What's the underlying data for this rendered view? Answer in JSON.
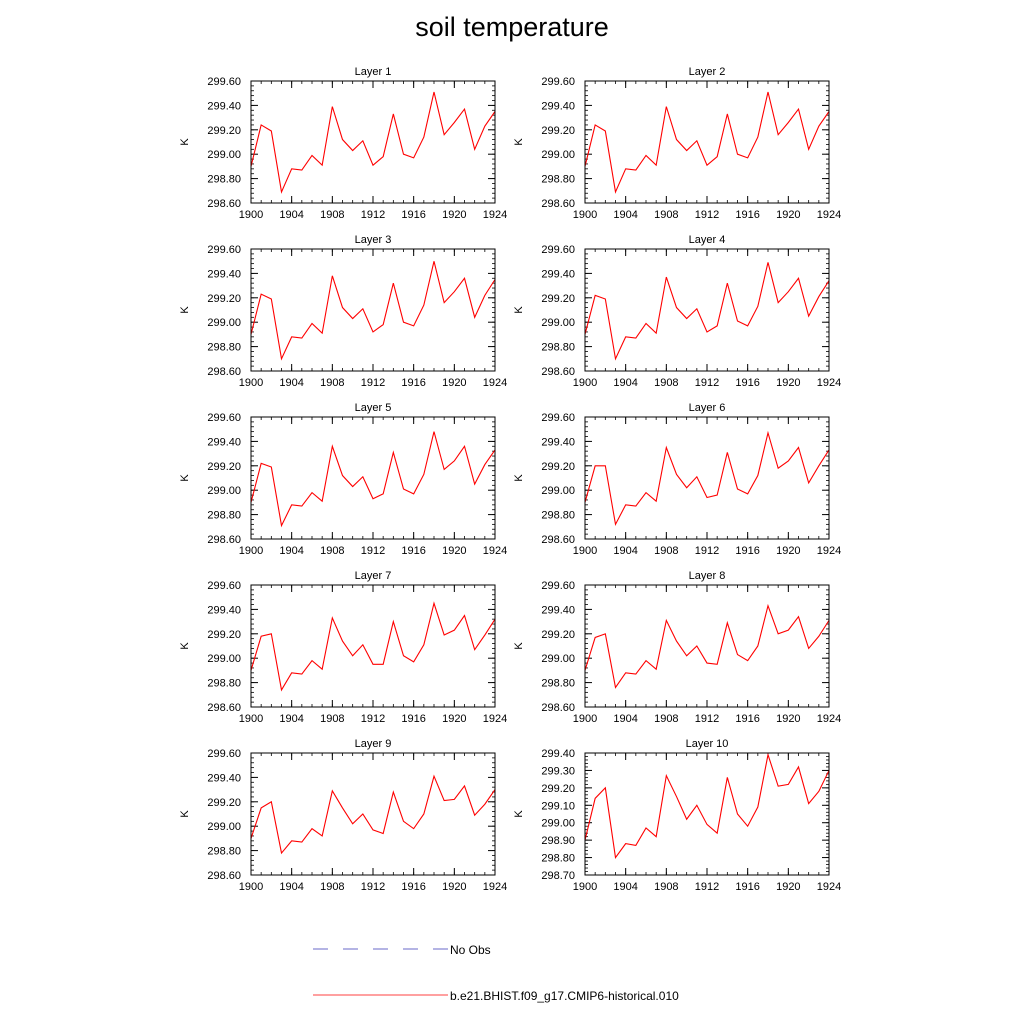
{
  "title": "soil temperature",
  "colors": {
    "model": "#ff0000",
    "obs": "#6a6ac8",
    "axis": "#000000"
  },
  "legend": {
    "obs_label": "No Obs",
    "model_label": "b.e21.BHIST.f09_g17.CMIP6-historical.010"
  },
  "chart_data": [
    {
      "type": "line",
      "title": "Layer 1",
      "ylabel": "K",
      "xlabel": "",
      "x": [
        1900,
        1901,
        1902,
        1903,
        1904,
        1905,
        1906,
        1907,
        1908,
        1909,
        1910,
        1911,
        1912,
        1913,
        1914,
        1915,
        1916,
        1917,
        1918,
        1919,
        1920,
        1921,
        1922,
        1923,
        1924
      ],
      "xticks": [
        1900,
        1904,
        1908,
        1912,
        1916,
        1920,
        1924
      ],
      "xlim": [
        1900,
        1924
      ],
      "yticks": [
        "298.60",
        "298.80",
        "299.00",
        "299.20",
        "299.40",
        "299.60"
      ],
      "ylim": [
        298.6,
        299.6
      ],
      "series": [
        {
          "name": "b.e21.BHIST.f09_g17.CMIP6-historical.010",
          "values": [
            298.9,
            299.24,
            299.19,
            298.69,
            298.88,
            298.87,
            298.99,
            298.91,
            299.39,
            299.12,
            299.03,
            299.11,
            298.91,
            298.98,
            299.33,
            299.0,
            298.97,
            299.14,
            299.51,
            299.16,
            299.26,
            299.37,
            299.04,
            299.23,
            299.35
          ]
        }
      ]
    },
    {
      "type": "line",
      "title": "Layer 2",
      "ylabel": "K",
      "xlabel": "",
      "x": [
        1900,
        1901,
        1902,
        1903,
        1904,
        1905,
        1906,
        1907,
        1908,
        1909,
        1910,
        1911,
        1912,
        1913,
        1914,
        1915,
        1916,
        1917,
        1918,
        1919,
        1920,
        1921,
        1922,
        1923,
        1924
      ],
      "xticks": [
        1900,
        1904,
        1908,
        1912,
        1916,
        1920,
        1924
      ],
      "xlim": [
        1900,
        1924
      ],
      "yticks": [
        "298.60",
        "298.80",
        "299.00",
        "299.20",
        "299.40",
        "299.60"
      ],
      "ylim": [
        298.6,
        299.6
      ],
      "series": [
        {
          "name": "b.e21.BHIST.f09_g17.CMIP6-historical.010",
          "values": [
            298.9,
            299.24,
            299.19,
            298.69,
            298.88,
            298.87,
            298.99,
            298.91,
            299.39,
            299.12,
            299.03,
            299.11,
            298.91,
            298.98,
            299.33,
            299.0,
            298.97,
            299.14,
            299.51,
            299.16,
            299.26,
            299.37,
            299.04,
            299.23,
            299.35
          ]
        }
      ]
    },
    {
      "type": "line",
      "title": "Layer 3",
      "ylabel": "K",
      "xlabel": "",
      "x": [
        1900,
        1901,
        1902,
        1903,
        1904,
        1905,
        1906,
        1907,
        1908,
        1909,
        1910,
        1911,
        1912,
        1913,
        1914,
        1915,
        1916,
        1917,
        1918,
        1919,
        1920,
        1921,
        1922,
        1923,
        1924
      ],
      "xticks": [
        1900,
        1904,
        1908,
        1912,
        1916,
        1920,
        1924
      ],
      "xlim": [
        1900,
        1924
      ],
      "yticks": [
        "298.60",
        "298.80",
        "299.00",
        "299.20",
        "299.40",
        "299.60"
      ],
      "ylim": [
        298.6,
        299.6
      ],
      "series": [
        {
          "name": "b.e21.BHIST.f09_g17.CMIP6-historical.010",
          "values": [
            298.9,
            299.23,
            299.19,
            298.7,
            298.88,
            298.87,
            298.99,
            298.91,
            299.38,
            299.12,
            299.03,
            299.11,
            298.92,
            298.98,
            299.32,
            299.0,
            298.97,
            299.14,
            299.5,
            299.16,
            299.25,
            299.36,
            299.04,
            299.22,
            299.35
          ]
        }
      ]
    },
    {
      "type": "line",
      "title": "Layer 4",
      "ylabel": "K",
      "xlabel": "",
      "x": [
        1900,
        1901,
        1902,
        1903,
        1904,
        1905,
        1906,
        1907,
        1908,
        1909,
        1910,
        1911,
        1912,
        1913,
        1914,
        1915,
        1916,
        1917,
        1918,
        1919,
        1920,
        1921,
        1922,
        1923,
        1924
      ],
      "xticks": [
        1900,
        1904,
        1908,
        1912,
        1916,
        1920,
        1924
      ],
      "xlim": [
        1900,
        1924
      ],
      "yticks": [
        "298.60",
        "298.80",
        "299.00",
        "299.20",
        "299.40",
        "299.60"
      ],
      "ylim": [
        298.6,
        299.6
      ],
      "series": [
        {
          "name": "b.e21.BHIST.f09_g17.CMIP6-historical.010",
          "values": [
            298.9,
            299.22,
            299.19,
            298.7,
            298.88,
            298.87,
            298.99,
            298.91,
            299.37,
            299.12,
            299.03,
            299.11,
            298.92,
            298.97,
            299.32,
            299.01,
            298.97,
            299.13,
            299.49,
            299.16,
            299.25,
            299.36,
            299.05,
            299.21,
            299.34
          ]
        }
      ]
    },
    {
      "type": "line",
      "title": "Layer 5",
      "ylabel": "K",
      "xlabel": "",
      "x": [
        1900,
        1901,
        1902,
        1903,
        1904,
        1905,
        1906,
        1907,
        1908,
        1909,
        1910,
        1911,
        1912,
        1913,
        1914,
        1915,
        1916,
        1917,
        1918,
        1919,
        1920,
        1921,
        1922,
        1923,
        1924
      ],
      "xticks": [
        1900,
        1904,
        1908,
        1912,
        1916,
        1920,
        1924
      ],
      "xlim": [
        1900,
        1924
      ],
      "yticks": [
        "298.60",
        "298.80",
        "299.00",
        "299.20",
        "299.40",
        "299.60"
      ],
      "ylim": [
        298.6,
        299.6
      ],
      "series": [
        {
          "name": "b.e21.BHIST.f09_g17.CMIP6-historical.010",
          "values": [
            298.9,
            299.22,
            299.19,
            298.71,
            298.88,
            298.87,
            298.98,
            298.91,
            299.36,
            299.12,
            299.03,
            299.11,
            298.93,
            298.97,
            299.31,
            299.01,
            298.97,
            299.13,
            299.48,
            299.17,
            299.24,
            299.36,
            299.05,
            299.21,
            299.33
          ]
        }
      ]
    },
    {
      "type": "line",
      "title": "Layer 6",
      "ylabel": "K",
      "xlabel": "",
      "x": [
        1900,
        1901,
        1902,
        1903,
        1904,
        1905,
        1906,
        1907,
        1908,
        1909,
        1910,
        1911,
        1912,
        1913,
        1914,
        1915,
        1916,
        1917,
        1918,
        1919,
        1920,
        1921,
        1922,
        1923,
        1924
      ],
      "xticks": [
        1900,
        1904,
        1908,
        1912,
        1916,
        1920,
        1924
      ],
      "xlim": [
        1900,
        1924
      ],
      "yticks": [
        "298.60",
        "298.80",
        "299.00",
        "299.20",
        "299.40",
        "299.60"
      ],
      "ylim": [
        298.6,
        299.6
      ],
      "series": [
        {
          "name": "b.e21.BHIST.f09_g17.CMIP6-historical.010",
          "values": [
            298.9,
            299.2,
            299.2,
            298.72,
            298.88,
            298.87,
            298.98,
            298.91,
            299.35,
            299.13,
            299.02,
            299.11,
            298.94,
            298.96,
            299.31,
            299.01,
            298.97,
            299.12,
            299.47,
            299.18,
            299.24,
            299.35,
            299.06,
            299.2,
            299.33
          ]
        }
      ]
    },
    {
      "type": "line",
      "title": "Layer 7",
      "ylabel": "K",
      "xlabel": "",
      "x": [
        1900,
        1901,
        1902,
        1903,
        1904,
        1905,
        1906,
        1907,
        1908,
        1909,
        1910,
        1911,
        1912,
        1913,
        1914,
        1915,
        1916,
        1917,
        1918,
        1919,
        1920,
        1921,
        1922,
        1923,
        1924
      ],
      "xticks": [
        1900,
        1904,
        1908,
        1912,
        1916,
        1920,
        1924
      ],
      "xlim": [
        1900,
        1924
      ],
      "yticks": [
        "298.60",
        "298.80",
        "299.00",
        "299.20",
        "299.40",
        "299.60"
      ],
      "ylim": [
        298.6,
        299.6
      ],
      "series": [
        {
          "name": "b.e21.BHIST.f09_g17.CMIP6-historical.010",
          "values": [
            298.9,
            299.18,
            299.2,
            298.74,
            298.88,
            298.87,
            298.98,
            298.91,
            299.33,
            299.14,
            299.02,
            299.11,
            298.95,
            298.95,
            299.3,
            299.02,
            298.97,
            299.11,
            299.45,
            299.19,
            299.23,
            299.35,
            299.07,
            299.19,
            299.32
          ]
        }
      ]
    },
    {
      "type": "line",
      "title": "Layer 8",
      "ylabel": "K",
      "xlabel": "",
      "x": [
        1900,
        1901,
        1902,
        1903,
        1904,
        1905,
        1906,
        1907,
        1908,
        1909,
        1910,
        1911,
        1912,
        1913,
        1914,
        1915,
        1916,
        1917,
        1918,
        1919,
        1920,
        1921,
        1922,
        1923,
        1924
      ],
      "xticks": [
        1900,
        1904,
        1908,
        1912,
        1916,
        1920,
        1924
      ],
      "xlim": [
        1900,
        1924
      ],
      "yticks": [
        "298.60",
        "298.80",
        "299.00",
        "299.20",
        "299.40",
        "299.60"
      ],
      "ylim": [
        298.6,
        299.6
      ],
      "series": [
        {
          "name": "b.e21.BHIST.f09_g17.CMIP6-historical.010",
          "values": [
            298.9,
            299.17,
            299.2,
            298.76,
            298.88,
            298.87,
            298.98,
            298.91,
            299.31,
            299.14,
            299.02,
            299.1,
            298.96,
            298.95,
            299.29,
            299.03,
            298.98,
            299.1,
            299.43,
            299.2,
            299.23,
            299.34,
            299.08,
            299.18,
            299.31
          ]
        }
      ]
    },
    {
      "type": "line",
      "title": "Layer 9",
      "ylabel": "K",
      "xlabel": "",
      "x": [
        1900,
        1901,
        1902,
        1903,
        1904,
        1905,
        1906,
        1907,
        1908,
        1909,
        1910,
        1911,
        1912,
        1913,
        1914,
        1915,
        1916,
        1917,
        1918,
        1919,
        1920,
        1921,
        1922,
        1923,
        1924
      ],
      "xticks": [
        1900,
        1904,
        1908,
        1912,
        1916,
        1920,
        1924
      ],
      "xlim": [
        1900,
        1924
      ],
      "yticks": [
        "298.60",
        "298.80",
        "299.00",
        "299.20",
        "299.40",
        "299.60"
      ],
      "ylim": [
        298.6,
        299.6
      ],
      "series": [
        {
          "name": "b.e21.BHIST.f09_g17.CMIP6-historical.010",
          "values": [
            298.9,
            299.15,
            299.2,
            298.78,
            298.88,
            298.87,
            298.98,
            298.92,
            299.29,
            299.15,
            299.02,
            299.1,
            298.97,
            298.94,
            299.28,
            299.04,
            298.98,
            299.1,
            299.41,
            299.21,
            299.22,
            299.33,
            299.09,
            299.18,
            299.3
          ]
        }
      ]
    },
    {
      "type": "line",
      "title": "Layer 10",
      "ylabel": "K",
      "xlabel": "",
      "x": [
        1900,
        1901,
        1902,
        1903,
        1904,
        1905,
        1906,
        1907,
        1908,
        1909,
        1910,
        1911,
        1912,
        1913,
        1914,
        1915,
        1916,
        1917,
        1918,
        1919,
        1920,
        1921,
        1922,
        1923,
        1924
      ],
      "xticks": [
        1900,
        1904,
        1908,
        1912,
        1916,
        1920,
        1924
      ],
      "xlim": [
        1900,
        1924
      ],
      "yticks": [
        "298.70",
        "298.80",
        "298.90",
        "299.00",
        "299.10",
        "299.20",
        "299.30",
        "299.40"
      ],
      "ylim": [
        298.7,
        299.4
      ],
      "series": [
        {
          "name": "b.e21.BHIST.f09_g17.CMIP6-historical.010",
          "values": [
            298.9,
            299.14,
            299.2,
            298.8,
            298.88,
            298.87,
            298.97,
            298.92,
            299.27,
            299.15,
            299.02,
            299.1,
            298.99,
            298.94,
            299.26,
            299.05,
            298.98,
            299.09,
            299.39,
            299.21,
            299.22,
            299.32,
            299.11,
            299.18,
            299.3
          ]
        }
      ]
    }
  ]
}
